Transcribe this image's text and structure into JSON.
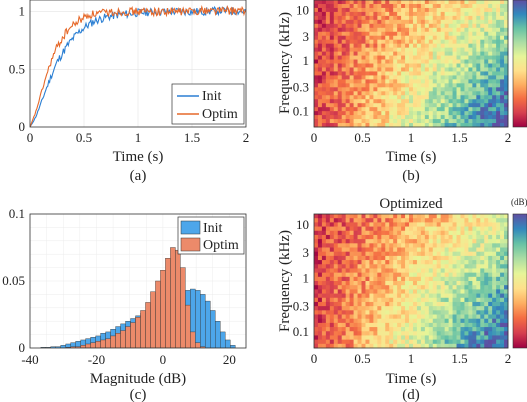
{
  "chart_data": [
    {
      "panel": "a",
      "type": "line",
      "caption": "(a)",
      "xlabel": "Time (s)",
      "ylabel": "",
      "xlim": [
        0,
        2
      ],
      "ylim": [
        0,
        1.1
      ],
      "xticks": [
        "0",
        "0.5",
        "1",
        "1.5",
        "2"
      ],
      "yticks": [
        "0",
        "0.5",
        "1"
      ],
      "grid": true,
      "legend_position": "bottom-right",
      "series": [
        {
          "name": "Init",
          "color": "#2b7fd3",
          "x": [
            0,
            0.05,
            0.1,
            0.15,
            0.2,
            0.25,
            0.3,
            0.35,
            0.4,
            0.45,
            0.5,
            0.55,
            0.6,
            0.7,
            0.8,
            0.9,
            1.0,
            1.2,
            1.4,
            1.6,
            1.8,
            2.0
          ],
          "y": [
            0,
            0.08,
            0.2,
            0.33,
            0.45,
            0.56,
            0.64,
            0.71,
            0.77,
            0.82,
            0.86,
            0.89,
            0.92,
            0.95,
            0.97,
            0.98,
            0.99,
            1.0,
            1.0,
            1.0,
            1.01,
            1.0
          ]
        },
        {
          "name": "Optim",
          "color": "#e6692a",
          "x": [
            0,
            0.05,
            0.1,
            0.15,
            0.2,
            0.25,
            0.3,
            0.35,
            0.4,
            0.45,
            0.5,
            0.55,
            0.6,
            0.7,
            0.8,
            0.9,
            1.0,
            1.2,
            1.4,
            1.6,
            1.8,
            2.0
          ],
          "y": [
            0,
            0.12,
            0.28,
            0.44,
            0.58,
            0.69,
            0.77,
            0.84,
            0.88,
            0.92,
            0.95,
            0.97,
            0.98,
            0.99,
            1.0,
            1.0,
            1.0,
            1.0,
            1.0,
            1.01,
            1.01,
            1.0
          ]
        }
      ]
    },
    {
      "panel": "b",
      "type": "heatmap",
      "caption": "(b)",
      "title": "",
      "xlabel": "Time (s)",
      "ylabel": "Frequency (kHz)",
      "xlim": [
        0,
        2
      ],
      "xticks": [
        "0",
        "0.5",
        "1",
        "1.5",
        "2"
      ],
      "yticks": [
        "10",
        "3",
        "1",
        "0.3",
        "0.1"
      ],
      "yscale": "log"
    },
    {
      "panel": "c",
      "type": "bar",
      "caption": "(c)",
      "xlabel": "Magnitude (dB)",
      "ylabel": "",
      "xlim": [
        -40,
        25
      ],
      "ylim": [
        0,
        0.1
      ],
      "xticks": [
        "-40",
        "-20",
        "0",
        "20"
      ],
      "yticks": [
        "0",
        "0.05",
        "0.1"
      ],
      "grid": true,
      "legend_position": "top-right",
      "bin_width": 1.5,
      "series": [
        {
          "name": "Init",
          "color": "#4da6ea",
          "bin_centers": [
            -36,
            -34.5,
            -33,
            -31.5,
            -30,
            -28.5,
            -27,
            -25.5,
            -24,
            -22.5,
            -21,
            -19.5,
            -18,
            -16.5,
            -15,
            -13.5,
            -12,
            -10.5,
            -9,
            -7.5,
            -6,
            -4.5,
            -3,
            -1.5,
            0,
            1.5,
            3,
            4.5,
            6,
            7.5,
            9,
            10.5,
            12,
            13.5,
            15,
            16.5,
            18,
            19.5,
            21
          ],
          "values": [
            0.0005,
            0.0005,
            0.001,
            0.001,
            0.002,
            0.003,
            0.004,
            0.005,
            0.006,
            0.007,
            0.008,
            0.009,
            0.011,
            0.012,
            0.014,
            0.016,
            0.018,
            0.02,
            0.022,
            0.024,
            0.026,
            0.028,
            0.03,
            0.032,
            0.034,
            0.035,
            0.036,
            0.038,
            0.041,
            0.043,
            0.044,
            0.043,
            0.04,
            0.035,
            0.028,
            0.02,
            0.012,
            0.006,
            0.002
          ]
        },
        {
          "name": "Optim",
          "color": "#ec8a6a",
          "bin_centers": [
            -36,
            -34.5,
            -33,
            -31.5,
            -30,
            -28.5,
            -27,
            -25.5,
            -24,
            -22.5,
            -21,
            -19.5,
            -18,
            -16.5,
            -15,
            -13.5,
            -12,
            -10.5,
            -9,
            -7.5,
            -6,
            -4.5,
            -3,
            -1.5,
            0,
            1.5,
            3,
            4.5,
            6,
            7.5,
            9,
            10.5,
            12,
            13.5,
            15,
            16.5,
            18,
            19.5,
            21
          ],
          "values": [
            0,
            0,
            0,
            0,
            0,
            0.0005,
            0.001,
            0.001,
            0.002,
            0.003,
            0.004,
            0.005,
            0.006,
            0.007,
            0.009,
            0.011,
            0.013,
            0.016,
            0.019,
            0.023,
            0.028,
            0.034,
            0.042,
            0.05,
            0.058,
            0.067,
            0.075,
            0.073,
            0.06,
            0.032,
            0.012,
            0.004,
            0.001,
            0,
            0,
            0,
            0,
            0,
            0
          ]
        }
      ]
    },
    {
      "panel": "d",
      "type": "heatmap",
      "caption": "(d)",
      "title": "Optimized",
      "colorbar_unit": "(dB)",
      "xlabel": "Time (s)",
      "ylabel": "Frequency (kHz)",
      "xlim": [
        0,
        2
      ],
      "xticks": [
        "0",
        "0.5",
        "1",
        "1.5",
        "2"
      ],
      "yticks": [
        "10",
        "3",
        "1",
        "0.3",
        "0.1"
      ],
      "yscale": "log"
    }
  ],
  "colors": {
    "colormap": [
      "#9e0142",
      "#d53e4f",
      "#f46d43",
      "#fdae61",
      "#fee08b",
      "#e6f598",
      "#abdda4",
      "#66c2a5",
      "#3288bd",
      "#5e4fa2"
    ]
  }
}
